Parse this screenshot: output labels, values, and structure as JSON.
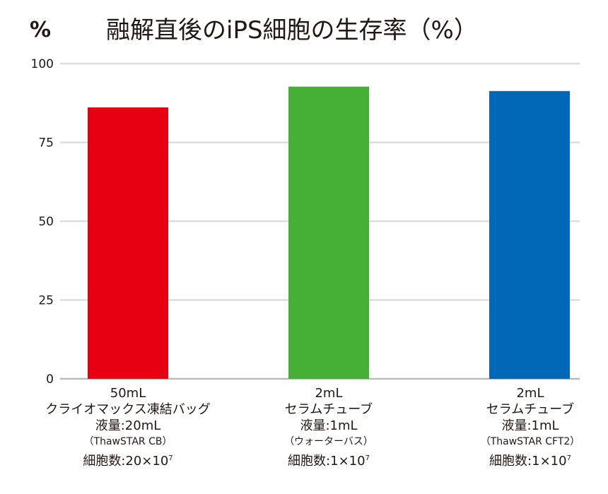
{
  "chart_data": {
    "type": "bar",
    "title": "融解直後のiPS細胞の生存率（%）",
    "ylabel": "%",
    "xlabel": "",
    "ylim": [
      0,
      100
    ],
    "yticks": [
      "0",
      "25",
      "50",
      "75",
      "100"
    ],
    "grid": true,
    "categories": [
      {
        "line1": "50mL",
        "line2": "クライオマックス凍結バッグ",
        "line3": "液量:20mL",
        "line4": "（ThawSTAR CB）",
        "line5": "細胞数:20×10",
        "exp": "7"
      },
      {
        "line1": "2mL",
        "line2": "セラムチューブ",
        "line3": "液量:1mL",
        "line4": "（ウォーターバス）",
        "line5": "細胞数:1×10",
        "exp": "7"
      },
      {
        "line1": "2mL",
        "line2": "セラムチューブ",
        "line3": "液量:1mL",
        "line4": "（ThawSTAR CFT2）",
        "line5": "細胞数:1×10",
        "exp": "7"
      }
    ],
    "values": [
      86.1,
      92.7,
      91.3
    ],
    "colors": [
      "#e60012",
      "#45b035",
      "#0068b7"
    ]
  }
}
